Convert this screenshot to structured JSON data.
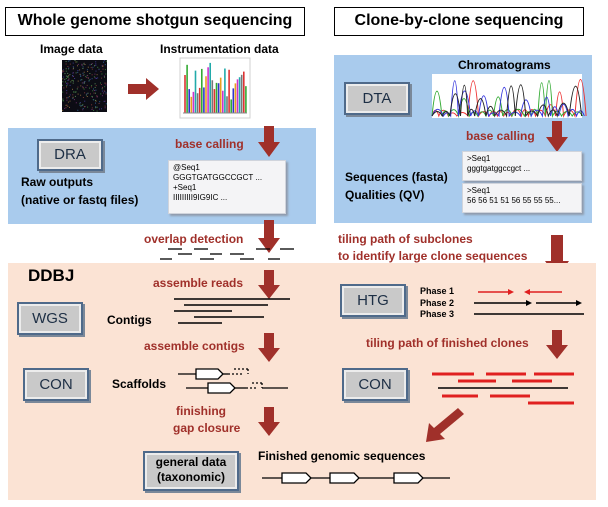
{
  "titles": {
    "wgs": "Whole genome shotgun sequencing",
    "clone": "Clone-by-clone sequencing"
  },
  "wgs_top": {
    "image_data": "Image data",
    "instrumentation_data": "Instrumentation data"
  },
  "clone_top": {
    "chromatograms": "Chromatograms",
    "dta": "DTA",
    "base_calling": "base calling",
    "sequences": "Sequences (fasta)",
    "qualities": "Qualities (QV)",
    "seq_box": {
      "line1": ">Seq1",
      "line2": "gggtgatggccgct ..."
    },
    "qual_box": {
      "line1": ">Seq1",
      "line2": "56 56 51 51 56 55 55 55..."
    }
  },
  "dra_panel": {
    "button": "DRA",
    "base_calling": "base calling",
    "raw_outputs": "Raw outputs",
    "native_fastq": "(native or fastq files)",
    "fastq_box": {
      "line1": "@Seq1",
      "line2": "GGGTGATGGCCGCT ...",
      "line3": "+Seq1",
      "line4": "IIIIIIIII9IG9IC ..."
    }
  },
  "middle": {
    "overlap_detection": "overlap detection",
    "tiling_subclones_1": "tiling path of subclones",
    "tiling_subclones_2": "to identify  large clone sequences"
  },
  "ddbj": {
    "title": "DDBJ",
    "assemble_reads": "assemble reads",
    "wgs_button": "WGS",
    "contigs": "Contigs",
    "assemble_contigs": "assemble contigs",
    "con_button_left": "CON",
    "scaffolds": "Scaffolds",
    "finishing": "finishing",
    "gap_closure": "gap closure",
    "htg_button": "HTG",
    "phase1": "Phase 1",
    "phase2": "Phase 2",
    "phase3": "Phase 3",
    "tiling_finished": "tiling path of finished clones",
    "con_button_right": "CON",
    "general_1": "general data",
    "general_2": "(taxonomic)",
    "finished": "Finished genomic sequences"
  },
  "colors": {
    "blue_panel": "#a9cbed",
    "peach_panel": "#fbe3d4",
    "arrow": "#a0302a",
    "red_line": "#e02020"
  }
}
